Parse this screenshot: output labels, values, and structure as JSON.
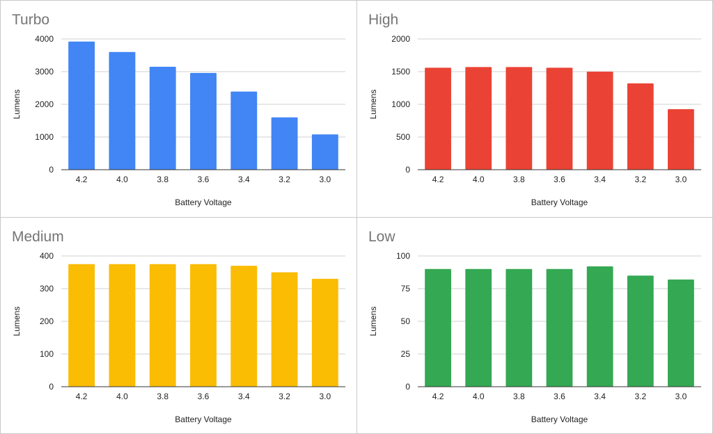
{
  "chart_data": [
    {
      "type": "bar",
      "title": "Turbo",
      "xlabel": "Battery Voltage",
      "ylabel": "Lumens",
      "categories": [
        "4.2",
        "4.0",
        "3.8",
        "3.6",
        "3.4",
        "3.2",
        "3.0"
      ],
      "values": [
        3920,
        3600,
        3150,
        2960,
        2390,
        1600,
        1080
      ],
      "ylim": [
        0,
        4000
      ],
      "yticks": [
        "0",
        "1000",
        "2000",
        "3000",
        "4000"
      ],
      "color": "#4285F4",
      "grid": true,
      "legend": "none"
    },
    {
      "type": "bar",
      "title": "High",
      "xlabel": "Battery Voltage",
      "ylabel": "Lumens",
      "categories": [
        "4.2",
        "4.0",
        "3.8",
        "3.6",
        "3.4",
        "3.2",
        "3.0"
      ],
      "values": [
        1560,
        1570,
        1570,
        1560,
        1500,
        1320,
        925
      ],
      "ylim": [
        0,
        2000
      ],
      "yticks": [
        "0",
        "500",
        "1000",
        "1500",
        "2000"
      ],
      "color": "#EA4335",
      "grid": true,
      "legend": "none"
    },
    {
      "type": "bar",
      "title": "Medium",
      "xlabel": "Battery Voltage",
      "ylabel": "Lumens",
      "categories": [
        "4.2",
        "4.0",
        "3.8",
        "3.6",
        "3.4",
        "3.2",
        "3.0"
      ],
      "values": [
        375,
        375,
        375,
        375,
        370,
        350,
        330
      ],
      "ylim": [
        0,
        400
      ],
      "yticks": [
        "0",
        "100",
        "200",
        "300",
        "400"
      ],
      "color": "#FBBC04",
      "grid": true,
      "legend": "none"
    },
    {
      "type": "bar",
      "title": "Low",
      "xlabel": "Battery Voltage",
      "ylabel": "Lumens",
      "categories": [
        "4.2",
        "4.0",
        "3.8",
        "3.6",
        "3.4",
        "3.2",
        "3.0"
      ],
      "values": [
        90,
        90,
        90,
        90,
        92,
        85,
        82
      ],
      "ylim": [
        0,
        100
      ],
      "yticks": [
        "0",
        "25",
        "50",
        "75",
        "100"
      ],
      "color": "#34A853",
      "grid": true,
      "legend": "none"
    }
  ]
}
